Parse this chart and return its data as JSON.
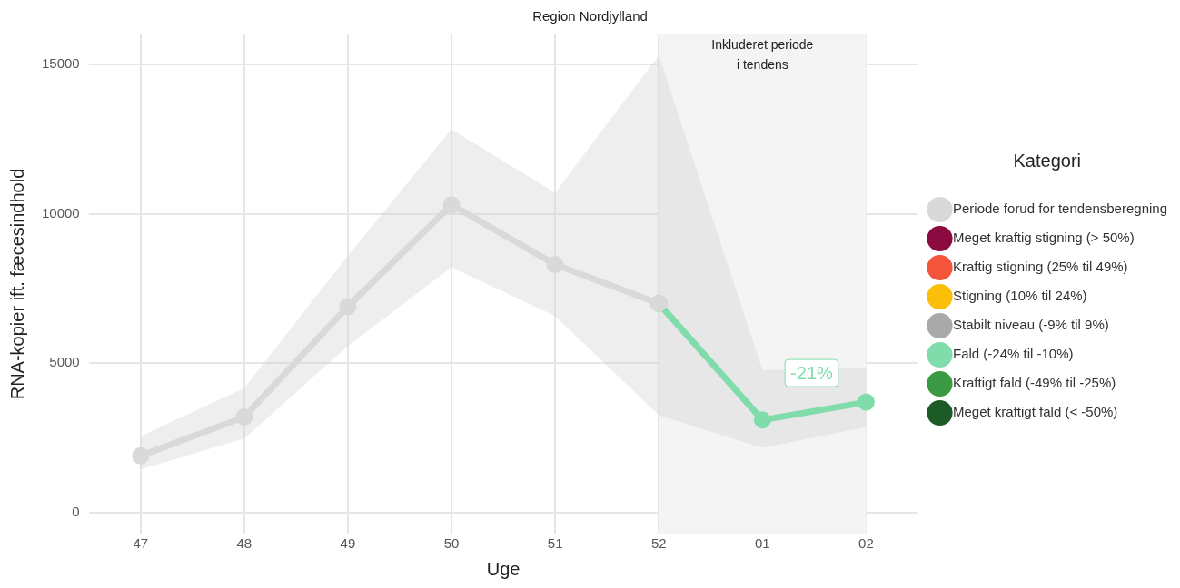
{
  "chart_data": {
    "type": "line",
    "title": "Region Nordjylland",
    "xlabel": "Uge",
    "ylabel": "RNA-kopier ift. fæcesindhold",
    "legend_title": "Kategori",
    "categories": [
      "47",
      "48",
      "49",
      "50",
      "51",
      "52",
      "01",
      "02"
    ],
    "ylim": [
      -700,
      16000
    ],
    "yticks": [
      0,
      5000,
      10000,
      15000
    ],
    "series": [
      {
        "name": "Periode forud for tendensberegning",
        "color": "#d9d9d9",
        "values": [
          1900,
          3200,
          6900,
          10300,
          8300,
          7000,
          null,
          null
        ],
        "lower": [
          1450,
          2480,
          5580,
          8210,
          6580,
          3260,
          null,
          null
        ],
        "upper": [
          2560,
          4170,
          8600,
          12830,
          10700,
          15300,
          null,
          null
        ]
      },
      {
        "name": "Meget kraftig stigning (> 50%)",
        "color": "#8b0a3f",
        "values": [
          null,
          null,
          null,
          null,
          null,
          null,
          null,
          null
        ]
      },
      {
        "name": "Kraftig stigning (25% til 49%)",
        "color": "#f4553a",
        "values": [
          null,
          null,
          null,
          null,
          null,
          null,
          null,
          null
        ]
      },
      {
        "name": "Stigning (10% til 24%)",
        "color": "#fbbf0a",
        "values": [
          null,
          null,
          null,
          null,
          null,
          null,
          null,
          null
        ]
      },
      {
        "name": "Stabilt niveau (-9% til 9%)",
        "color": "#a9a9a9",
        "values": [
          null,
          null,
          null,
          null,
          null,
          null,
          null,
          null
        ]
      },
      {
        "name": "Fald (-24% til -10%)",
        "color": "#80dcaa",
        "values": [
          null,
          null,
          null,
          null,
          null,
          7000,
          3100,
          3700
        ],
        "lower": [
          null,
          null,
          null,
          null,
          null,
          3260,
          2170,
          2870
        ],
        "upper": [
          null,
          null,
          null,
          null,
          null,
          15300,
          4770,
          4830
        ]
      },
      {
        "name": "Kraftigt fald (-49% til -25%)",
        "color": "#3a9a44",
        "values": [
          null,
          null,
          null,
          null,
          null,
          null,
          null,
          null
        ]
      },
      {
        "name": "Meget kraftigt fald (< -50%)",
        "color": "#1c5a26",
        "values": [
          null,
          null,
          null,
          null,
          null,
          null,
          null,
          null
        ]
      }
    ],
    "bands": [
      {
        "axis": "x",
        "from": "52",
        "to": "02",
        "label": "Inkluderet periode\ni tendens",
        "color": "#f4f4f4"
      }
    ],
    "annotations": [
      "-21%"
    ],
    "grid": true,
    "legend": "right",
    "marker": "circle",
    "line_style": "solid"
  }
}
